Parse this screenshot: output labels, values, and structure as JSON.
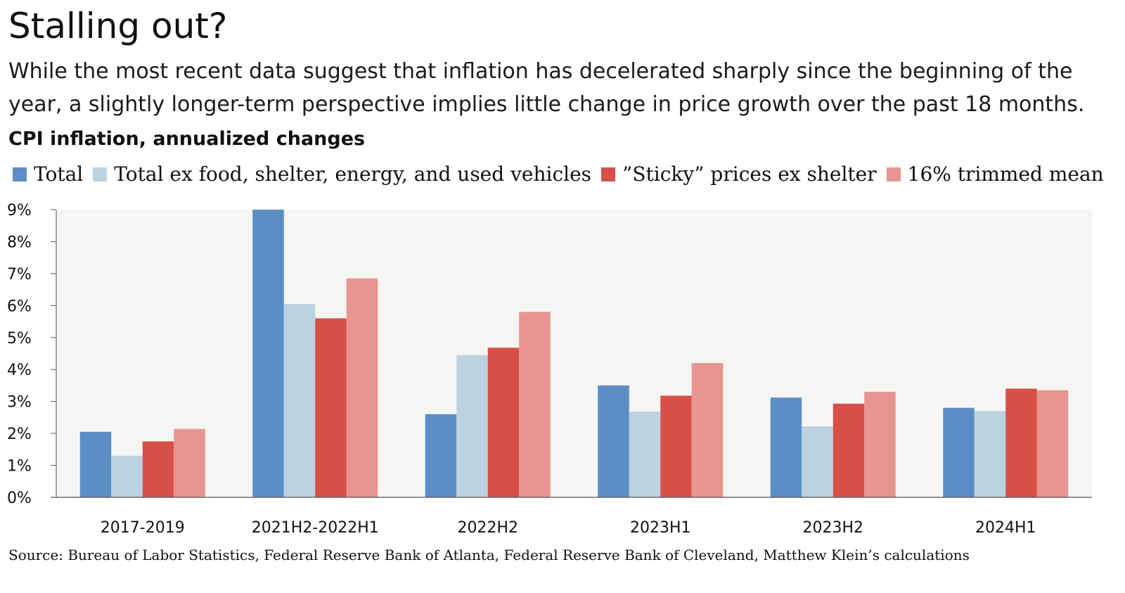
{
  "title": "Stalling out?",
  "subtitle": "While the most recent data suggest that inflation has decelerated sharply since the beginning of the year, a slightly longer-term perspective implies little change in price growth over the past 18 months.",
  "chart_title": "CPI inflation, annualized changes",
  "source": "Source: Bureau of Labor Statistics, Federal Reserve Bank of Atlanta, Federal Reserve Bank of Cleveland, Matthew Klein’s calculations",
  "colors": {
    "plot_background": "#f5f5f3",
    "axis": "#555555",
    "series": [
      "#5b8ec4",
      "#bcd2e0",
      "#d65048",
      "#e89490"
    ]
  },
  "chart_data": {
    "type": "bar",
    "title": "CPI inflation, annualized changes",
    "xlabel": "",
    "ylabel": "",
    "ylim": [
      0,
      9
    ],
    "yticks": [
      "0%",
      "1%",
      "2%",
      "3%",
      "4%",
      "5%",
      "6%",
      "7%",
      "8%",
      "9%"
    ],
    "grid": false,
    "legend_position": "top",
    "categories": [
      "2017-2019",
      "2021H2-2022H1",
      "2022H2",
      "2023H1",
      "2023H2",
      "2024H1"
    ],
    "series": [
      {
        "name": "Total",
        "values": [
          2.05,
          9.0,
          2.6,
          3.5,
          3.12,
          2.8
        ]
      },
      {
        "name": "Total ex food, shelter, energy, and used vehicles",
        "values": [
          1.3,
          6.05,
          4.45,
          2.68,
          2.22,
          2.7
        ]
      },
      {
        "name": "”Sticky” prices ex shelter",
        "values": [
          1.75,
          5.6,
          4.68,
          3.18,
          2.93,
          3.4
        ]
      },
      {
        "name": "16% trimmed mean",
        "values": [
          2.14,
          6.85,
          5.8,
          4.2,
          3.3,
          3.35
        ]
      }
    ]
  }
}
